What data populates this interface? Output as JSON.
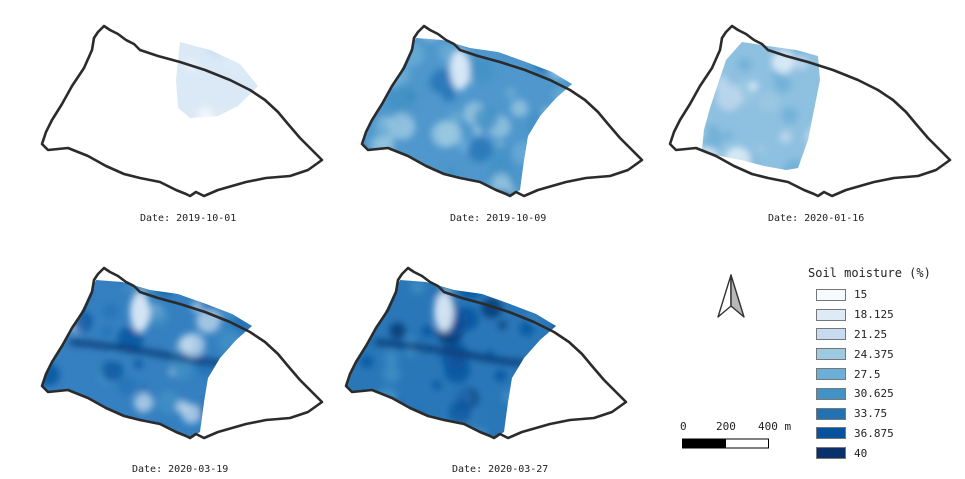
{
  "panels": [
    {
      "date_label": "Date: 2019-10-01",
      "coverage": "northeast-lobe",
      "intensity": "low"
    },
    {
      "date_label": "Date: 2019-10-09",
      "coverage": "west-center",
      "intensity": "medium"
    },
    {
      "date_label": "Date: 2020-01-16",
      "coverage": "center-strip",
      "intensity": "medium-low"
    },
    {
      "date_label": "Date: 2020-03-19",
      "coverage": "west-center",
      "intensity": "medium-high"
    },
    {
      "date_label": "Date: 2020-03-27",
      "coverage": "west-center",
      "intensity": "high"
    }
  ],
  "legend": {
    "title": "Soil moisture (%)",
    "items": [
      {
        "label": "15",
        "color": "#f7fbff"
      },
      {
        "label": "18.125",
        "color": "#deebf7"
      },
      {
        "label": "21.25",
        "color": "#c6dbef"
      },
      {
        "label": "24.375",
        "color": "#9ecae1"
      },
      {
        "label": "27.5",
        "color": "#6baed6"
      },
      {
        "label": "30.625",
        "color": "#4292c6"
      },
      {
        "label": "33.75",
        "color": "#2171b5"
      },
      {
        "label": "36.875",
        "color": "#08519c"
      },
      {
        "label": "40",
        "color": "#08306b"
      }
    ]
  },
  "scale_bar": {
    "ticks": [
      "0",
      "200",
      "400 m"
    ]
  },
  "north_arrow": {
    "icon": "north-arrow-icon"
  },
  "colors": {
    "outline": "#2b2b2b",
    "background": "#ffffff"
  }
}
